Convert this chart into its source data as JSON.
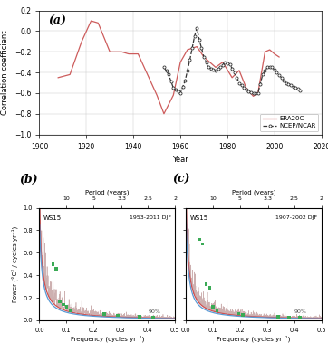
{
  "panel_a": {
    "title": "(a)",
    "xlabel": "Year",
    "ylabel": "Correlation coefficient",
    "xlim": [
      1900,
      2020
    ],
    "ylim": [
      -1.0,
      0.2
    ],
    "yticks": [
      -1.0,
      -0.8,
      -0.6,
      -0.4,
      -0.2,
      0.0,
      0.2
    ],
    "xticks": [
      1900,
      1920,
      1940,
      1960,
      1980,
      2000,
      2020
    ],
    "era20c_color": "#cd5c5c",
    "ncep_color": "#333333",
    "legend_labels": [
      "ERA20C",
      "NCEP/NCAR"
    ]
  },
  "panel_b": {
    "title": "(b)",
    "label_ws": "WS15",
    "label_period": "1953-2011 DJF",
    "xlabel": "Frequency (cycles yr⁻¹)",
    "ylabel": "Power (°C² / cycles yr⁻¹)",
    "xlim": [
      0.0,
      0.5
    ],
    "ylim": [
      0.0,
      1.0
    ],
    "xticks": [
      0.0,
      0.1,
      0.2,
      0.3,
      0.4,
      0.5
    ],
    "yticks": [
      0.0,
      0.2,
      0.4,
      0.6,
      0.8,
      1.0
    ],
    "period_ticks": [
      10,
      5,
      3.3,
      2.5,
      2
    ],
    "period_label": "Period (years)",
    "confidence_label": "90%"
  },
  "panel_c": {
    "title": "(c)",
    "label_ws": "WS15",
    "label_period": "1907-2002 DJF",
    "xlabel": "Frequency (cycles yr⁻¹)",
    "ylabel": "Power (°C² / cycles yr⁻¹)",
    "xlim": [
      0.0,
      0.5
    ],
    "ylim": [
      0.0,
      1.0
    ],
    "xticks": [
      0.0,
      0.1,
      0.2,
      0.3,
      0.4,
      0.5
    ],
    "yticks": [
      0.0,
      0.2,
      0.4,
      0.6,
      0.8,
      1.0
    ],
    "period_ticks": [
      10,
      5,
      3.3,
      2.5,
      2
    ],
    "period_label": "Period (years)",
    "confidence_label": "90%"
  }
}
